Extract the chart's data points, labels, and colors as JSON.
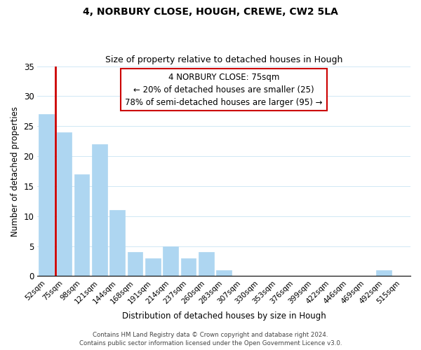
{
  "title": "4, NORBURY CLOSE, HOUGH, CREWE, CW2 5LA",
  "subtitle": "Size of property relative to detached houses in Hough",
  "xlabel": "Distribution of detached houses by size in Hough",
  "ylabel": "Number of detached properties",
  "bar_labels": [
    "52sqm",
    "75sqm",
    "98sqm",
    "121sqm",
    "144sqm",
    "168sqm",
    "191sqm",
    "214sqm",
    "237sqm",
    "260sqm",
    "283sqm",
    "307sqm",
    "330sqm",
    "353sqm",
    "376sqm",
    "399sqm",
    "422sqm",
    "446sqm",
    "469sqm",
    "492sqm",
    "515sqm"
  ],
  "bar_values": [
    27,
    24,
    17,
    22,
    11,
    4,
    3,
    5,
    3,
    4,
    1,
    0,
    0,
    0,
    0,
    0,
    0,
    0,
    0,
    1,
    0
  ],
  "highlight_bar_index": 1,
  "highlight_color": "#cc0000",
  "normal_bar_color": "#aed6f1",
  "ylim": [
    0,
    35
  ],
  "yticks": [
    0,
    5,
    10,
    15,
    20,
    25,
    30,
    35
  ],
  "annotation_title": "4 NORBURY CLOSE: 75sqm",
  "annotation_line1": "← 20% of detached houses are smaller (25)",
  "annotation_line2": "78% of semi-detached houses are larger (95) →",
  "annotation_box_color": "#ffffff",
  "annotation_border_color": "#cc0000",
  "footer1": "Contains HM Land Registry data © Crown copyright and database right 2024.",
  "footer2": "Contains public sector information licensed under the Open Government Licence v3.0.",
  "background_color": "#ffffff",
  "grid_color": "#d0e8f5"
}
